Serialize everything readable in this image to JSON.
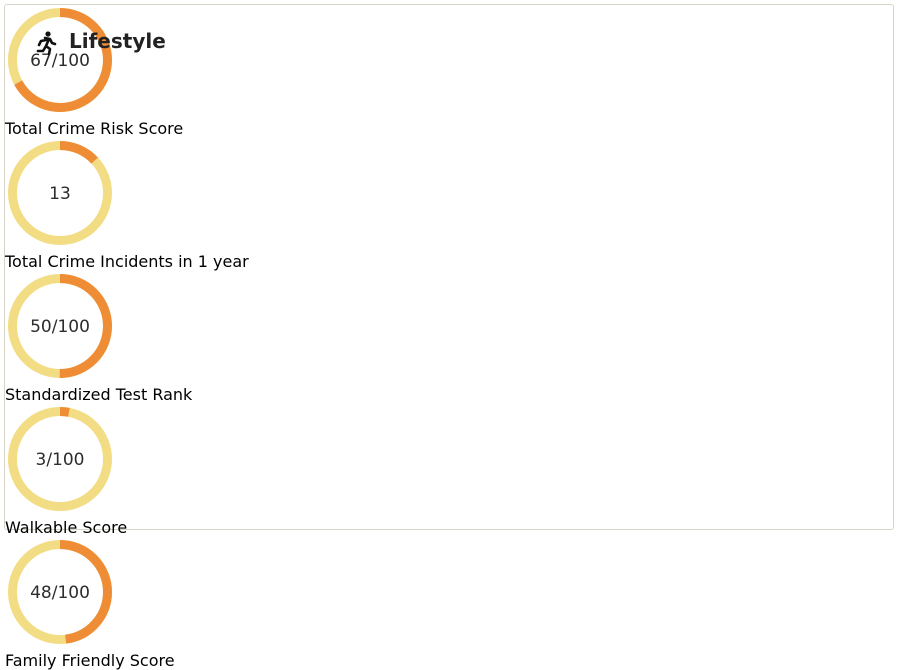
{
  "header": {
    "title": "Lifestyle"
  },
  "scale": [
    0,
    100
  ],
  "metrics": [
    {
      "label": "Total Crime Risk Score",
      "value": 67,
      "value_label": "67/100"
    },
    {
      "label": "Total Crime Incidents in 1 year",
      "value": 13
    },
    {
      "label": "Standardized Test Rank",
      "value": 50,
      "value_label": "50/100"
    },
    {
      "label": "Walkable Score",
      "value": 3,
      "value_label": "3/100"
    },
    {
      "label": "Family Friendly Score",
      "value": 48,
      "value_label": "48/100"
    }
  ],
  "colors": {
    "track": "#f3dd84",
    "arc": "#ee8d36"
  }
}
